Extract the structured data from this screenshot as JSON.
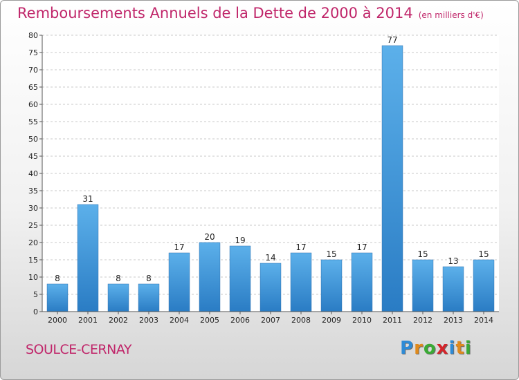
{
  "page": {
    "title": "Remboursements Annuels de la Dette de 2000 à 2014",
    "subtitle": "(en milliers d'€)",
    "commune": "SOULCE-CERNAY",
    "logo": {
      "letters": [
        "P",
        "r",
        "o",
        "x",
        "i",
        "t",
        "i"
      ],
      "colors": [
        "#2e8bd6",
        "#e08a1c",
        "#3aaa35",
        "#d4242a",
        "#2e8bd6",
        "#e08a1c",
        "#3aaa35"
      ]
    }
  },
  "chart_data": {
    "type": "bar",
    "title": "Remboursements Annuels de la Dette de 2000 à 2014",
    "subtitle": "(en milliers d'€)",
    "categories": [
      "2000",
      "2001",
      "2002",
      "2003",
      "2004",
      "2005",
      "2006",
      "2007",
      "2008",
      "2009",
      "2010",
      "2011",
      "2012",
      "2013",
      "2014"
    ],
    "values": [
      8,
      31,
      8,
      8,
      17,
      20,
      19,
      14,
      17,
      15,
      17,
      77,
      15,
      13,
      15
    ],
    "data_labels": [
      "8",
      "31",
      "8",
      "8",
      "17",
      "20",
      "19",
      "14",
      "17",
      "15",
      "17",
      "77",
      "15",
      "13",
      "15"
    ],
    "yticks": [
      "0",
      "5",
      "10",
      "15",
      "20",
      "25",
      "30",
      "35",
      "40",
      "45",
      "50",
      "55",
      "60",
      "65",
      "70",
      "75",
      "80"
    ],
    "ylim": [
      0,
      80
    ],
    "grid": true,
    "bar_color": "#3a8fd6",
    "xlabel": "",
    "ylabel": ""
  }
}
